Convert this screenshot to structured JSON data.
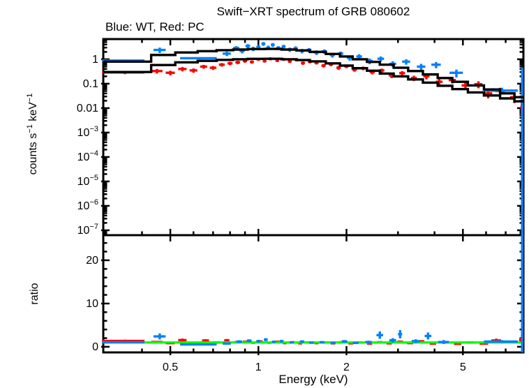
{
  "chart_data": {
    "type": "scatter",
    "title": "Swift−XRT spectrum of GRB 080602",
    "subtitle": "Blue: WT, Red: PC",
    "colors": {
      "wt_data": "#0080ff",
      "pc_data": "#ff0000",
      "model": "#000000",
      "unity_line": "#00ff00",
      "frame": "#000000",
      "background": "#ffffff"
    },
    "axes": {
      "x": {
        "label": "Energy (keV)",
        "scale": "log",
        "min": 0.295,
        "max": 8.05,
        "major": [
          {
            "v": 0.5,
            "text": "0.5"
          },
          {
            "v": 1,
            "text": "1"
          },
          {
            "v": 2,
            "text": "2"
          },
          {
            "v": 5,
            "text": "5"
          }
        ],
        "minor": [
          0.4,
          0.6,
          0.7,
          0.8,
          0.9,
          3,
          4,
          6,
          7
        ]
      },
      "y_top": {
        "label_parts": {
          "a": "counts s",
          "asup": "−1",
          "b": " keV",
          "bsup": "−1"
        },
        "scale": "log",
        "min": 6.3e-08,
        "max": 6.7,
        "major": [
          {
            "v": 1,
            "text": "1"
          },
          {
            "v": 0.1,
            "text": "0.1"
          },
          {
            "v": 0.01,
            "text": "0.01"
          },
          {
            "v": 0.001,
            "base": "10",
            "exp": "−3"
          },
          {
            "v": 0.0001,
            "base": "10",
            "exp": "−4"
          },
          {
            "v": 1e-05,
            "base": "10",
            "exp": "−5"
          },
          {
            "v": 1e-06,
            "base": "10",
            "exp": "−6"
          },
          {
            "v": 1e-07,
            "base": "10",
            "exp": "−7"
          }
        ]
      },
      "y_bottom": {
        "label": "ratio",
        "scale": "linear",
        "min": -1.3,
        "max": 25.8,
        "major": [
          {
            "v": 0,
            "text": "0"
          },
          {
            "v": 10,
            "text": "10"
          },
          {
            "v": 20,
            "text": "20"
          }
        ],
        "minor_step": 2
      }
    },
    "series": {
      "wt_spectrum_points": [
        [
          0.35,
          0.058,
          0.88,
          0.1
        ],
        [
          0.46,
          0.022,
          2.4,
          0.6
        ],
        [
          0.63,
          0.09,
          1.1,
          0.12
        ],
        [
          0.78,
          0.025,
          1.7,
          0.35
        ],
        [
          0.84,
          0.02,
          2.9,
          0.55
        ],
        [
          0.88,
          0.018,
          2.2,
          0.45
        ],
        [
          0.92,
          0.017,
          3.5,
          0.65
        ],
        [
          0.96,
          0.016,
          2.7,
          0.55
        ],
        [
          1.0,
          0.016,
          3.2,
          0.6
        ],
        [
          1.04,
          0.016,
          4.3,
          0.75
        ],
        [
          1.08,
          0.016,
          3.0,
          0.6
        ],
        [
          1.12,
          0.017,
          3.9,
          0.7
        ],
        [
          1.17,
          0.018,
          2.9,
          0.55
        ],
        [
          1.22,
          0.019,
          3.3,
          0.6
        ],
        [
          1.28,
          0.021,
          2.5,
          0.5
        ],
        [
          1.34,
          0.022,
          2.8,
          0.55
        ],
        [
          1.41,
          0.024,
          2.2,
          0.45
        ],
        [
          1.49,
          0.027,
          2.4,
          0.48
        ],
        [
          1.58,
          0.03,
          1.9,
          0.4
        ],
        [
          1.68,
          0.033,
          2.1,
          0.42
        ],
        [
          1.79,
          0.036,
          1.5,
          0.33
        ],
        [
          1.91,
          0.04,
          1.7,
          0.36
        ],
        [
          2.05,
          0.045,
          1.15,
          0.27
        ],
        [
          2.21,
          0.05,
          1.3,
          0.3
        ],
        [
          2.4,
          0.06,
          0.85,
          0.22
        ],
        [
          2.62,
          0.068,
          1.05,
          0.25
        ],
        [
          2.88,
          0.078,
          0.65,
          0.18
        ],
        [
          3.2,
          0.1,
          0.8,
          0.2
        ],
        [
          3.6,
          0.12,
          0.5,
          0.15
        ],
        [
          4.05,
          0.15,
          0.6,
          0.17
        ],
        [
          4.75,
          0.25,
          0.28,
          0.1
        ],
        [
          6.8,
          0.9,
          0.052,
          0.016
        ],
        [
          7.97,
          0.08,
          0.07,
          0.07,
          0.38
        ]
      ],
      "pc_spectrum_points": [
        [
          0.35,
          0.058,
          0.29,
          0.045
        ],
        [
          0.45,
          0.02,
          0.33,
          0.07
        ],
        [
          0.5,
          0.018,
          0.28,
          0.06
        ],
        [
          0.55,
          0.018,
          0.4,
          0.08
        ],
        [
          0.6,
          0.018,
          0.35,
          0.07
        ],
        [
          0.65,
          0.018,
          0.5,
          0.09
        ],
        [
          0.7,
          0.018,
          0.45,
          0.08
        ],
        [
          0.75,
          0.017,
          0.6,
          0.1
        ],
        [
          0.8,
          0.016,
          0.68,
          0.11
        ],
        [
          0.85,
          0.016,
          0.75,
          0.12
        ],
        [
          0.9,
          0.015,
          0.85,
          0.13
        ],
        [
          0.95,
          0.015,
          0.78,
          0.12
        ],
        [
          1.0,
          0.015,
          1.0,
          0.14
        ],
        [
          1.05,
          0.015,
          0.85,
          0.12
        ],
        [
          1.1,
          0.016,
          1.05,
          0.15
        ],
        [
          1.16,
          0.017,
          0.9,
          0.13
        ],
        [
          1.22,
          0.018,
          1.0,
          0.14
        ],
        [
          1.28,
          0.019,
          0.82,
          0.12
        ],
        [
          1.35,
          0.02,
          0.95,
          0.13
        ],
        [
          1.42,
          0.022,
          0.7,
          0.11
        ],
        [
          1.5,
          0.024,
          0.8,
          0.12
        ],
        [
          1.58,
          0.026,
          0.72,
          0.11
        ],
        [
          1.67,
          0.028,
          0.55,
          0.09
        ],
        [
          1.77,
          0.03,
          0.62,
          0.1
        ],
        [
          1.88,
          0.033,
          0.45,
          0.08
        ],
        [
          2.0,
          0.036,
          0.52,
          0.09
        ],
        [
          2.13,
          0.04,
          0.38,
          0.07
        ],
        [
          2.28,
          0.045,
          0.43,
          0.075
        ],
        [
          2.45,
          0.05,
          0.3,
          0.06
        ],
        [
          2.64,
          0.055,
          0.35,
          0.065
        ],
        [
          2.85,
          0.06,
          0.22,
          0.05
        ],
        [
          3.1,
          0.07,
          0.27,
          0.055
        ],
        [
          3.4,
          0.08,
          0.17,
          0.042
        ],
        [
          3.75,
          0.09,
          0.2,
          0.05
        ],
        [
          4.15,
          0.11,
          0.12,
          0.035
        ],
        [
          4.6,
          0.13,
          0.14,
          0.038
        ],
        [
          5.1,
          0.15,
          0.085,
          0.028
        ],
        [
          5.65,
          0.18,
          0.095,
          0.03
        ],
        [
          6.1,
          0.2,
          0.04,
          0.015
        ],
        [
          6.7,
          0.25,
          0.05,
          0.018
        ],
        [
          7.5,
          0.25,
          0.028,
          0.012
        ],
        [
          7.95,
          0.1,
          0.011,
          0.006
        ]
      ],
      "wt_model_bins": [
        [
          0.295,
          0.43,
          0.8
        ],
        [
          0.43,
          0.52,
          1.5
        ],
        [
          0.52,
          0.62,
          1.9
        ],
        [
          0.62,
          0.72,
          2.15
        ],
        [
          0.72,
          0.82,
          2.35
        ],
        [
          0.82,
          0.92,
          2.5
        ],
        [
          0.92,
          1.05,
          2.62
        ],
        [
          1.05,
          1.2,
          2.65
        ],
        [
          1.2,
          1.35,
          2.5
        ],
        [
          1.35,
          1.5,
          2.3
        ],
        [
          1.5,
          1.7,
          2.0
        ],
        [
          1.7,
          1.9,
          1.65
        ],
        [
          1.9,
          2.1,
          1.3
        ],
        [
          2.1,
          2.35,
          1.0
        ],
        [
          2.35,
          2.6,
          0.78
        ],
        [
          2.6,
          2.9,
          0.6
        ],
        [
          2.9,
          3.25,
          0.45
        ],
        [
          3.25,
          3.65,
          0.33
        ],
        [
          3.65,
          4.1,
          0.24
        ],
        [
          4.1,
          4.6,
          0.17
        ],
        [
          4.6,
          5.2,
          0.12
        ],
        [
          5.2,
          5.9,
          0.085
        ],
        [
          5.9,
          6.7,
          0.058
        ],
        [
          6.7,
          7.5,
          0.04
        ],
        [
          7.5,
          8.05,
          0.028
        ]
      ],
      "pc_model_bins": [
        [
          0.295,
          0.43,
          0.3
        ],
        [
          0.43,
          0.52,
          0.58
        ],
        [
          0.52,
          0.62,
          0.75
        ],
        [
          0.62,
          0.72,
          0.86
        ],
        [
          0.72,
          0.82,
          0.94
        ],
        [
          0.82,
          0.92,
          1.0
        ],
        [
          0.92,
          1.05,
          1.04
        ],
        [
          1.05,
          1.2,
          1.05
        ],
        [
          1.2,
          1.35,
          1.0
        ],
        [
          1.35,
          1.5,
          0.93
        ],
        [
          1.5,
          1.7,
          0.82
        ],
        [
          1.7,
          1.9,
          0.68
        ],
        [
          1.9,
          2.1,
          0.55
        ],
        [
          2.1,
          2.35,
          0.43
        ],
        [
          2.35,
          2.6,
          0.34
        ],
        [
          2.6,
          2.9,
          0.26
        ],
        [
          2.9,
          3.25,
          0.2
        ],
        [
          3.25,
          3.65,
          0.15
        ],
        [
          3.65,
          4.1,
          0.11
        ],
        [
          4.1,
          4.6,
          0.082
        ],
        [
          4.6,
          5.2,
          0.06
        ],
        [
          5.2,
          5.9,
          0.044
        ],
        [
          5.9,
          6.7,
          0.033
        ],
        [
          6.7,
          7.5,
          0.025
        ],
        [
          7.5,
          8.05,
          0.019
        ]
      ],
      "wt_ratio_points": [
        [
          0.35,
          0.058,
          1.05,
          0.25
        ],
        [
          0.46,
          0.022,
          2.4,
          0.7
        ],
        [
          0.63,
          0.09,
          0.55,
          0.15
        ],
        [
          0.78,
          0.025,
          0.75,
          0.2
        ],
        [
          0.86,
          0.02,
          1.2,
          0.3
        ],
        [
          0.93,
          0.018,
          1.4,
          0.33
        ],
        [
          1.0,
          0.016,
          1.3,
          0.3
        ],
        [
          1.06,
          0.016,
          1.65,
          0.35
        ],
        [
          1.13,
          0.017,
          1.15,
          0.28
        ],
        [
          1.2,
          0.019,
          1.3,
          0.3
        ],
        [
          1.3,
          0.022,
          1.0,
          0.25
        ],
        [
          1.41,
          0.025,
          1.2,
          0.28
        ],
        [
          1.52,
          0.028,
          0.95,
          0.24
        ],
        [
          1.65,
          0.032,
          1.05,
          0.26
        ],
        [
          1.8,
          0.036,
          0.9,
          0.24
        ],
        [
          1.97,
          0.042,
          1.25,
          0.3
        ],
        [
          2.15,
          0.048,
          0.9,
          0.27
        ],
        [
          2.38,
          0.058,
          1.1,
          0.3
        ],
        [
          2.6,
          0.068,
          2.7,
          0.85
        ],
        [
          2.88,
          0.078,
          1.5,
          0.5
        ],
        [
          3.05,
          0.05,
          2.9,
          0.95
        ],
        [
          3.45,
          0.11,
          1.3,
          0.45
        ],
        [
          3.8,
          0.1,
          2.5,
          0.8
        ],
        [
          4.3,
          0.18,
          1.1,
          0.45
        ],
        [
          6.8,
          0.9,
          1.2,
          0.35
        ],
        [
          7.97,
          0.08,
          2.5,
          3.8,
          23.5
        ]
      ],
      "pc_ratio_points": [
        [
          0.35,
          0.058,
          1.35,
          0.3
        ],
        [
          0.45,
          0.02,
          1.1,
          0.25
        ],
        [
          0.5,
          0.018,
          0.85,
          0.22
        ],
        [
          0.55,
          0.018,
          1.55,
          0.35
        ],
        [
          0.61,
          0.018,
          0.9,
          0.22
        ],
        [
          0.66,
          0.018,
          1.45,
          0.3
        ],
        [
          0.72,
          0.018,
          1.0,
          0.22
        ],
        [
          0.78,
          0.016,
          1.5,
          0.3
        ],
        [
          0.84,
          0.016,
          1.05,
          0.22
        ],
        [
          0.9,
          0.015,
          1.15,
          0.22
        ],
        [
          0.96,
          0.015,
          0.95,
          0.2
        ],
        [
          1.02,
          0.015,
          1.2,
          0.22
        ],
        [
          1.09,
          0.016,
          0.95,
          0.2
        ],
        [
          1.16,
          0.017,
          1.15,
          0.22
        ],
        [
          1.23,
          0.018,
          0.85,
          0.18
        ],
        [
          1.31,
          0.02,
          1.05,
          0.2
        ],
        [
          1.39,
          0.022,
          0.8,
          0.18
        ],
        [
          1.48,
          0.024,
          1.0,
          0.2
        ],
        [
          1.58,
          0.026,
          0.85,
          0.18
        ],
        [
          1.69,
          0.029,
          1.0,
          0.2
        ],
        [
          1.8,
          0.032,
          0.8,
          0.18
        ],
        [
          1.93,
          0.036,
          1.05,
          0.2
        ],
        [
          2.07,
          0.04,
          0.8,
          0.18
        ],
        [
          2.22,
          0.045,
          1.0,
          0.2
        ],
        [
          2.4,
          0.05,
          0.75,
          0.18
        ],
        [
          2.6,
          0.055,
          1.05,
          0.22
        ],
        [
          2.8,
          0.06,
          0.8,
          0.2
        ],
        [
          3.05,
          0.07,
          1.15,
          0.25
        ],
        [
          3.3,
          0.08,
          0.85,
          0.22
        ],
        [
          3.6,
          0.09,
          1.25,
          0.3
        ],
        [
          3.95,
          0.1,
          0.75,
          0.22
        ],
        [
          4.35,
          0.12,
          1.05,
          0.28
        ],
        [
          4.8,
          0.14,
          0.7,
          0.22
        ],
        [
          5.3,
          0.16,
          1.0,
          0.28
        ],
        [
          5.9,
          0.2,
          0.75,
          0.25
        ],
        [
          6.5,
          0.25,
          1.45,
          0.45
        ],
        [
          7.15,
          0.5,
          1.1,
          0.28
        ],
        [
          7.9,
          0.12,
          1.6,
          0.5
        ]
      ],
      "unity_line_y": 1
    }
  }
}
